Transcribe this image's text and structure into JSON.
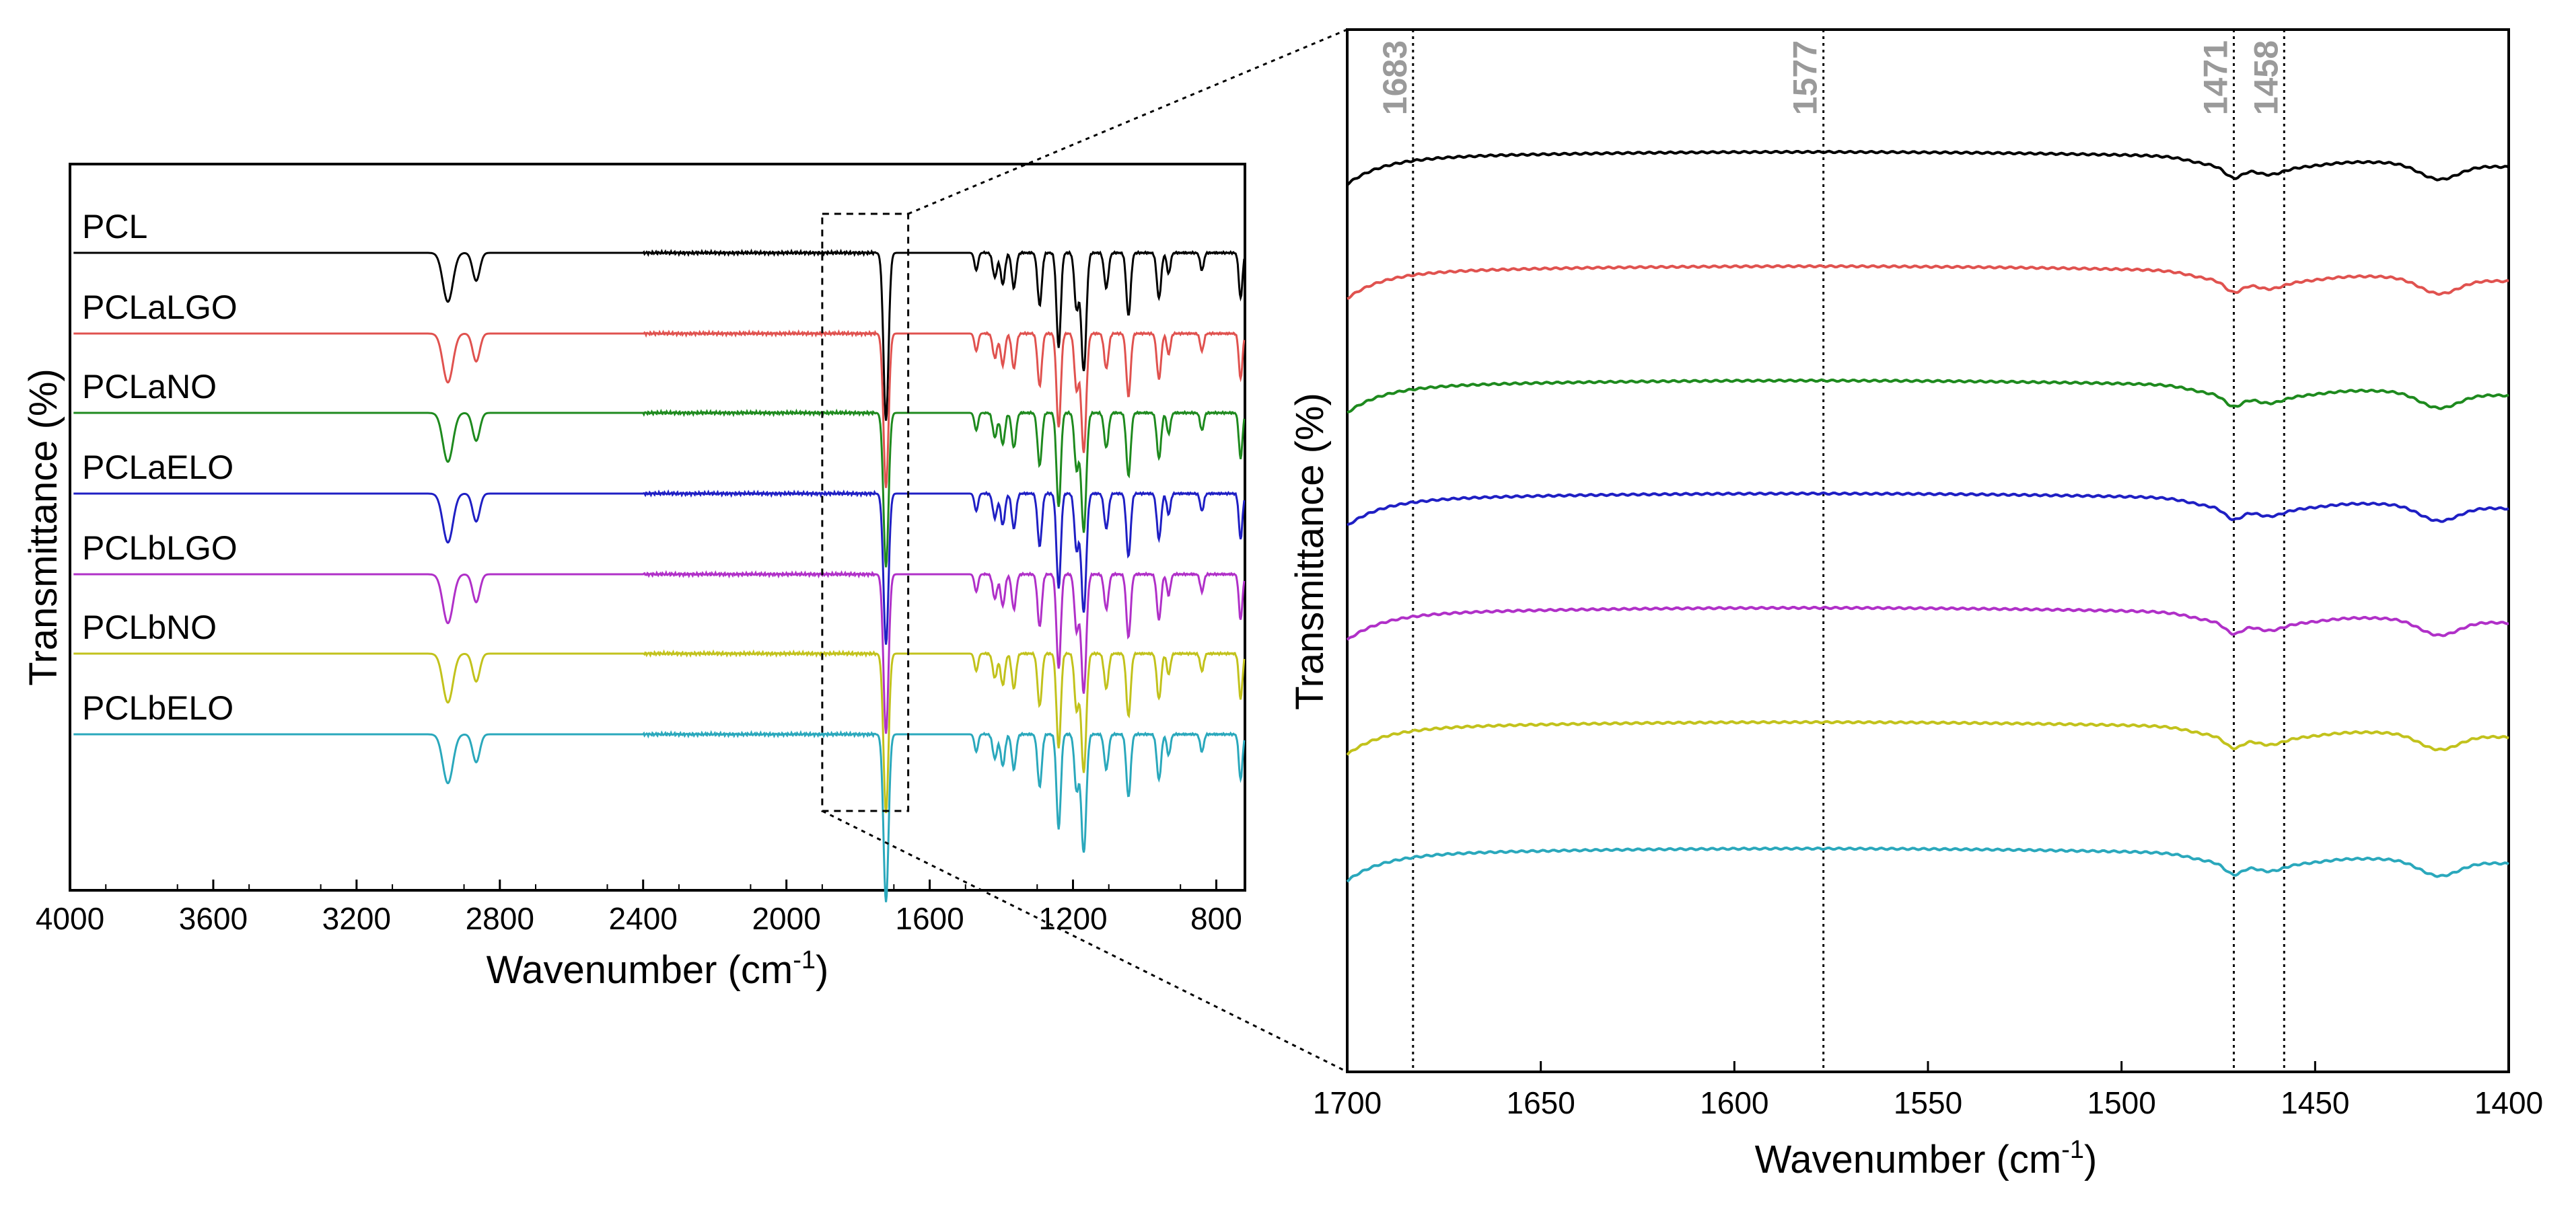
{
  "chart_data": [
    {
      "type": "line",
      "panel": "full spectrum",
      "xlabel": "Wavenumber (cm",
      "xlabel_sup": "-1",
      "xlabel_close": ")",
      "ylabel": "Transmittance (%)",
      "xlim": [
        4000,
        720
      ],
      "x_ticks": [
        4000,
        3600,
        3200,
        2800,
        2400,
        2000,
        1600,
        1200,
        800
      ],
      "x_tick_labels": [
        "4000",
        "3600",
        "3200",
        "2800",
        "2400",
        "2000",
        "1600",
        "1200",
        "800"
      ],
      "y_ticks_shown": false,
      "inset_box": {
        "x_from": 1900,
        "x_to": 1660,
        "note": "region magnified in right panel"
      },
      "series": [
        {
          "name": "PCL",
          "color": "#000000",
          "peak_depth": 1.0
        },
        {
          "name": "PCLaLGO",
          "color": "#e0524f",
          "peak_depth": 0.92
        },
        {
          "name": "PCLaNO",
          "color": "#1e8a1e",
          "peak_depth": 0.92
        },
        {
          "name": "PCLaELO",
          "color": "#1f1fc4",
          "peak_depth": 0.9
        },
        {
          "name": "PCLbLGO",
          "color": "#b030c8",
          "peak_depth": 0.95
        },
        {
          "name": "PCLbNO",
          "color": "#c2c21c",
          "peak_depth": 0.95
        },
        {
          "name": "PCLbELO",
          "color": "#2aa8bc",
          "peak_depth": 1.0
        }
      ],
      "absorption_bands": [
        {
          "center": 2945,
          "depth": 0.14,
          "width": 14
        },
        {
          "center": 2866,
          "depth": 0.08,
          "width": 10
        },
        {
          "center": 1722,
          "depth": 0.48,
          "width": 7
        },
        {
          "center": 1470,
          "depth": 0.05,
          "width": 5
        },
        {
          "center": 1418,
          "depth": 0.07,
          "width": 6
        },
        {
          "center": 1396,
          "depth": 0.09,
          "width": 6
        },
        {
          "center": 1365,
          "depth": 0.1,
          "width": 6
        },
        {
          "center": 1293,
          "depth": 0.15,
          "width": 6
        },
        {
          "center": 1240,
          "depth": 0.27,
          "width": 6
        },
        {
          "center": 1190,
          "depth": 0.16,
          "width": 6
        },
        {
          "center": 1170,
          "depth": 0.34,
          "width": 7
        },
        {
          "center": 1107,
          "depth": 0.1,
          "width": 6
        },
        {
          "center": 1045,
          "depth": 0.18,
          "width": 6
        },
        {
          "center": 960,
          "depth": 0.13,
          "width": 6
        },
        {
          "center": 933,
          "depth": 0.06,
          "width": 5
        },
        {
          "center": 840,
          "depth": 0.05,
          "width": 5
        },
        {
          "center": 732,
          "depth": 0.13,
          "width": 5
        }
      ]
    },
    {
      "type": "line",
      "panel": "zoomed region",
      "xlabel": "Wavenumber (cm",
      "xlabel_sup": "-1",
      "xlabel_close": ")",
      "ylabel": "Transmittance (%)",
      "xlim": [
        1700,
        1400
      ],
      "x_ticks": [
        1700,
        1650,
        1600,
        1550,
        1500,
        1450,
        1400
      ],
      "x_tick_labels": [
        "1700",
        "1650",
        "1600",
        "1550",
        "1500",
        "1450",
        "1400"
      ],
      "y_ticks_shown": false,
      "reference_lines": [
        {
          "x": 1683,
          "label": "1683"
        },
        {
          "x": 1577,
          "label": "1577"
        },
        {
          "x": 1471,
          "label": "1471"
        },
        {
          "x": 1458,
          "label": "1458"
        }
      ],
      "series_names": [
        "PCL",
        "PCLaLGO",
        "PCLaNO",
        "PCLaELO",
        "PCLbLGO",
        "PCLbNO",
        "PCLbELO"
      ],
      "features": [
        {
          "center": 1471,
          "depth": 0.55,
          "width": 2.2
        },
        {
          "center": 1462,
          "depth": 0.35,
          "width": 3.5
        },
        {
          "center": 1418,
          "depth": 0.75,
          "width": 5
        }
      ]
    }
  ]
}
